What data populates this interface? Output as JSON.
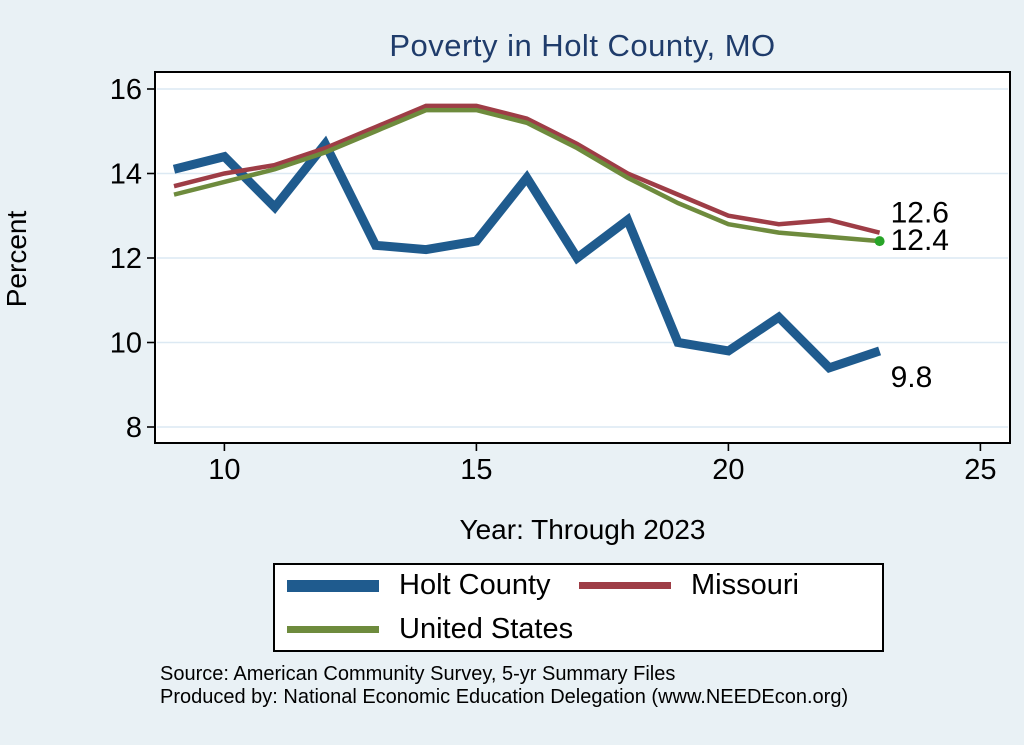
{
  "chart": {
    "title": "Poverty in Holt County, MO",
    "xlabel": "Year: Through 2023",
    "ylabel": "Percent"
  },
  "chart_data": {
    "type": "line",
    "title": "Poverty in Holt County, MO",
    "xlabel": "Year: Through 2023",
    "ylabel": "Percent",
    "x": [
      9,
      10,
      11,
      12,
      13,
      14,
      15,
      16,
      17,
      18,
      19,
      20,
      21,
      22,
      23
    ],
    "x_ticks": [
      10,
      15,
      20,
      25
    ],
    "y_ticks": [
      16,
      14,
      12,
      10,
      8
    ],
    "xlim": [
      8.6,
      25.5
    ],
    "ylim": [
      7.6,
      16.4
    ],
    "grid": "horizontal",
    "legend_position": "below-plot",
    "series": [
      {
        "name": "Holt County",
        "color": "#1f5b8e",
        "stroke_width": 9,
        "values": [
          14.1,
          14.4,
          13.2,
          14.7,
          12.3,
          12.2,
          12.4,
          13.9,
          12.0,
          12.9,
          10.0,
          9.8,
          10.6,
          9.4,
          9.8
        ],
        "end_label": "9.8"
      },
      {
        "name": "Missouri",
        "color": "#9e3d46",
        "stroke_width": 4.5,
        "values": [
          13.7,
          14.0,
          14.2,
          14.6,
          15.1,
          15.6,
          15.6,
          15.3,
          14.7,
          14.0,
          13.5,
          13.0,
          12.8,
          12.9,
          12.6
        ],
        "end_label": "12.6"
      },
      {
        "name": "United States",
        "color": "#6e8b3d",
        "stroke_width": 4.5,
        "values": [
          13.5,
          13.8,
          14.1,
          14.5,
          15.0,
          15.5,
          15.5,
          15.2,
          14.6,
          13.9,
          13.3,
          12.8,
          12.6,
          12.5,
          12.4
        ],
        "end_label": "12.4",
        "end_marker_color": "#28a428"
      }
    ]
  },
  "legend": {
    "items": [
      "Holt County",
      "Missouri",
      "United States"
    ]
  },
  "notes": {
    "source": "Source: American Community Survey, 5-yr Summary Files",
    "produced_by": "Produced by: National Economic Education Delegation (www.NEEDEcon.org)"
  },
  "colors": {
    "background": "#e9f1f5",
    "plot_background": "#ffffff",
    "gridline": "#dce9f3",
    "axis": "#000000",
    "title_text": "#1f3c6b",
    "tick_text": "#000000"
  }
}
